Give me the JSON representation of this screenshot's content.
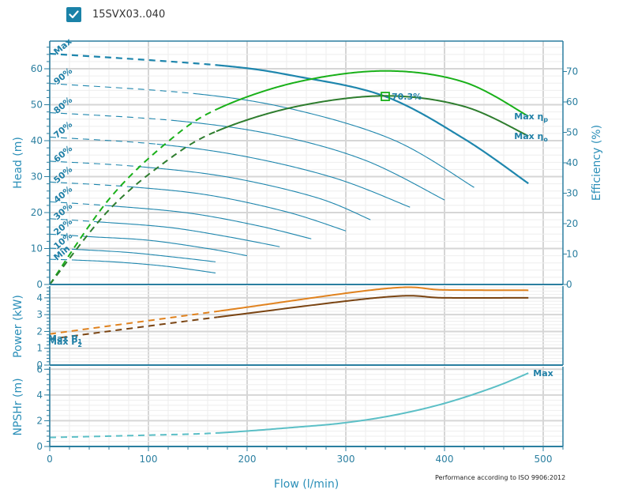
{
  "header": {
    "checkbox_checked": true,
    "series_name": "15SVX03..040"
  },
  "colors": {
    "axis": "#2b7fa0",
    "head_curve": "#1e86ad",
    "eta_p": "#19b019",
    "eta_o": "#2e7d2e",
    "p1": "#e0821e",
    "p2": "#7a4412",
    "npsh": "#5bbfc6",
    "grid_major": "#d6d6d6",
    "grid_minor": "#eeeeee",
    "bep_marker": "#19b019"
  },
  "chart_data": [
    {
      "panel": "head-efficiency",
      "type": "line",
      "xlabel": "Flow (l/min)",
      "ylabel": "Head (m)",
      "y2label": "Efficiency (%)",
      "xlim": [
        0,
        520
      ],
      "ylim": [
        0,
        67.7
      ],
      "y2lim": [
        0,
        80
      ],
      "xticks": [
        0,
        100,
        200,
        300,
        400,
        500
      ],
      "yticks": [
        0,
        10,
        20,
        30,
        40,
        50,
        60
      ],
      "y2ticks": [
        0,
        10,
        20,
        30,
        40,
        50,
        60,
        70
      ],
      "grid": true,
      "head_curves": [
        {
          "name": "Max",
          "label": "Max",
          "bold": true,
          "dashed_until": 170,
          "x": [
            0,
            170,
            250,
            340,
            420,
            485
          ],
          "y": [
            64.2,
            61.0,
            57.9,
            52.3,
            40.5,
            28.1
          ]
        },
        {
          "name": "90%",
          "label": "90%",
          "dashed_until": 150,
          "x": [
            0,
            150,
            250,
            350,
            430
          ],
          "y": [
            55.9,
            53.0,
            48.5,
            40.0,
            27.0
          ]
        },
        {
          "name": "80%",
          "label": "80%",
          "dashed_until": 130,
          "x": [
            0,
            130,
            230,
            320,
            400
          ],
          "y": [
            47.8,
            45.5,
            41.5,
            34.5,
            23.5
          ]
        },
        {
          "name": "70%",
          "label": "70%",
          "dashed_until": 110,
          "x": [
            0,
            110,
            200,
            290,
            365
          ],
          "y": [
            41.0,
            39.0,
            35.5,
            29.5,
            21.5
          ]
        },
        {
          "name": "60%",
          "label": "60%",
          "dashed_until": 90,
          "x": [
            0,
            90,
            180,
            270,
            325
          ],
          "y": [
            34.3,
            32.8,
            29.9,
            24.2,
            18.0
          ]
        },
        {
          "name": "50%",
          "label": "50%",
          "dashed_until": 80,
          "x": [
            0,
            80,
            160,
            240,
            300
          ],
          "y": [
            28.5,
            27.2,
            24.9,
            20.2,
            14.9
          ]
        },
        {
          "name": "40%",
          "label": "40%",
          "dashed_until": 60,
          "x": [
            0,
            60,
            140,
            210,
            265
          ],
          "y": [
            23.0,
            21.9,
            19.9,
            16.4,
            12.7
          ]
        },
        {
          "name": "30%",
          "label": "30%",
          "dashed_until": 50,
          "x": [
            0,
            50,
            120,
            180,
            233
          ],
          "y": [
            18.3,
            17.4,
            15.9,
            13.3,
            10.5
          ]
        },
        {
          "name": "20%",
          "label": "20%",
          "dashed_until": 40,
          "x": [
            0,
            40,
            100,
            160,
            200
          ],
          "y": [
            14.0,
            13.3,
            12.3,
            10.0,
            8.0
          ]
        },
        {
          "name": "10%",
          "label": "10%",
          "dashed_until": 30,
          "x": [
            0,
            30,
            80,
            130,
            168
          ],
          "y": [
            10.1,
            9.7,
            8.9,
            7.5,
            6.3
          ]
        },
        {
          "name": "Min",
          "label": "Min",
          "dashed_until": 25,
          "x": [
            0,
            25,
            70,
            120,
            168
          ],
          "y": [
            7.0,
            6.8,
            6.2,
            5.0,
            3.2
          ]
        }
      ],
      "efficiency_curves": [
        {
          "name": "eta_p",
          "label": "Max  η",
          "subscript": "p",
          "dashed_until": 170,
          "x": [
            0,
            60,
            120,
            170,
            250,
            340,
            420,
            485
          ],
          "y": [
            0,
            28.0,
            47.0,
            57.7,
            66.5,
            70.2,
            66.5,
            55.3
          ]
        },
        {
          "name": "eta_o",
          "label": "Max  η",
          "subscript": "o",
          "dashed_until": 170,
          "x": [
            0,
            60,
            120,
            170,
            250,
            340,
            420,
            485
          ],
          "y": [
            0,
            24.5,
            41.0,
            50.5,
            58.5,
            62.0,
            58.5,
            48.8
          ]
        }
      ],
      "bep_marker": {
        "x": 340,
        "y_head": 52.3,
        "label": "70.3%"
      }
    },
    {
      "panel": "power",
      "type": "line",
      "ylabel": "Power (kW)",
      "xlim": [
        0,
        520
      ],
      "ylim": [
        0,
        4.7
      ],
      "yticks": [
        0,
        1,
        2,
        3,
        4
      ],
      "grid": true,
      "series": [
        {
          "name": "P1",
          "label": "Max  P",
          "subscript": "1",
          "dashed_until": 170,
          "x": [
            0,
            170,
            340,
            400,
            485
          ],
          "y": [
            1.85,
            3.2,
            4.55,
            4.47,
            4.45
          ]
        },
        {
          "name": "P2",
          "label": "Max  P",
          "subscript": "2",
          "dashed_until": 170,
          "x": [
            0,
            170,
            340,
            400,
            485
          ],
          "y": [
            1.55,
            2.85,
            4.05,
            4.0,
            4.0
          ]
        }
      ]
    },
    {
      "panel": "npsh",
      "type": "line",
      "ylabel": "NPSHr (m)",
      "xlabel": "Flow (l/min)",
      "xlim": [
        0,
        520
      ],
      "ylim": [
        0,
        6.2
      ],
      "yticks": [
        0,
        2,
        4,
        6
      ],
      "grid": true,
      "series": [
        {
          "name": "NPSH Max",
          "label": "Max",
          "dashed_until": 170,
          "x": [
            0,
            100,
            170,
            250,
            300,
            350,
            400,
            450,
            485
          ],
          "y": [
            0.7,
            0.88,
            1.05,
            1.5,
            1.85,
            2.45,
            3.35,
            4.6,
            5.7
          ]
        }
      ]
    }
  ],
  "footer_note": "Performance according to ISO 9906:2012"
}
